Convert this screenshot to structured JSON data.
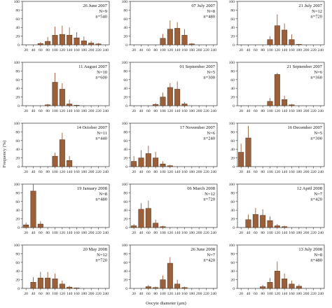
{
  "y_axis_title": "Frequency (%)",
  "x_axis_title": "Oocyte diameter (μm)",
  "chart_data": {
    "type": "bar",
    "categories": [
      "20",
      "40",
      "60",
      "80",
      "100",
      "120",
      "140",
      "160",
      "180",
      "200",
      "220",
      "240"
    ],
    "ylim": [
      0,
      100
    ],
    "y_ticks": [
      0,
      20,
      40,
      60,
      80,
      100
    ],
    "bar_color": "#9b5f3a",
    "error_bar_color": "#9b5f3a",
    "panels": [
      {
        "date": "26 June 2007",
        "n_females": "N=9",
        "n_oocytes": "n=540",
        "values": [
          0,
          0,
          3,
          8,
          22,
          24,
          22,
          16,
          9,
          4,
          2,
          0
        ],
        "errors": [
          0,
          0,
          3,
          10,
          20,
          20,
          18,
          13,
          10,
          5,
          2,
          0
        ]
      },
      {
        "date": "07 July 2007",
        "n_females": "N=8",
        "n_oocytes": "n=480",
        "values": [
          0,
          0,
          0,
          0,
          15,
          36,
          38,
          22,
          2,
          0,
          0,
          0
        ],
        "errors": [
          0,
          0,
          0,
          0,
          10,
          20,
          14,
          14,
          2,
          0,
          0,
          0
        ]
      },
      {
        "date": "21 July 2007",
        "n_females": "N=12",
        "n_oocytes": "n=720",
        "values": [
          0,
          0,
          0,
          0,
          12,
          44,
          34,
          12,
          1,
          0,
          0,
          0
        ],
        "errors": [
          0,
          0,
          0,
          0,
          8,
          26,
          15,
          12,
          1,
          0,
          0,
          0
        ]
      },
      {
        "date": "11 August 2007",
        "n_females": "N=10",
        "n_oocytes": "n=600",
        "values": [
          0,
          0,
          0,
          2,
          54,
          38,
          4,
          1,
          0,
          0,
          0,
          0
        ],
        "errors": [
          0,
          0,
          0,
          2,
          22,
          14,
          10,
          1,
          0,
          0,
          0,
          0
        ]
      },
      {
        "date": "01 September 2007",
        "n_females": "N=5",
        "n_oocytes": "n=300",
        "values": [
          0,
          0,
          0,
          3,
          20,
          42,
          38,
          4,
          0,
          0,
          0,
          0
        ],
        "errors": [
          0,
          0,
          0,
          3,
          10,
          10,
          18,
          4,
          0,
          0,
          0,
          0
        ]
      },
      {
        "date": "21 September 2007",
        "n_females": "N=6",
        "n_oocytes": "n=360",
        "values": [
          0,
          0,
          0,
          0,
          10,
          72,
          14,
          2,
          0,
          0,
          0,
          0
        ],
        "errors": [
          0,
          0,
          0,
          0,
          8,
          4,
          9,
          2,
          0,
          0,
          0,
          0
        ]
      },
      {
        "date": "14 October 2007",
        "n_females": "N=11",
        "n_oocytes": "n=440",
        "values": [
          0,
          0,
          0,
          0,
          24,
          62,
          14,
          0,
          0,
          0,
          0,
          0
        ],
        "errors": [
          0,
          0,
          0,
          0,
          8,
          16,
          10,
          0,
          0,
          0,
          0,
          0
        ]
      },
      {
        "date": "17 November 2007",
        "n_females": "N=6",
        "n_oocytes": "n=240",
        "values": [
          12,
          20,
          30,
          20,
          6,
          2,
          0,
          0,
          0,
          0,
          0,
          0
        ],
        "errors": [
          12,
          18,
          18,
          14,
          6,
          2,
          0,
          0,
          0,
          0,
          0,
          0
        ]
      },
      {
        "date": "16 December 2007",
        "n_females": "N=5",
        "n_oocytes": "n=300",
        "values": [
          33,
          66,
          0,
          0,
          0,
          0,
          0,
          0,
          0,
          0,
          0,
          0
        ],
        "errors": [
          20,
          28,
          0,
          0,
          0,
          0,
          0,
          0,
          0,
          0,
          0,
          0
        ]
      },
      {
        "date": "19 January 2008",
        "n_females": "N=8",
        "n_oocytes": "n=480",
        "values": [
          6,
          84,
          8,
          0,
          0,
          0,
          0,
          0,
          0,
          0,
          0,
          0
        ],
        "errors": [
          5,
          18,
          6,
          0,
          0,
          0,
          0,
          0,
          0,
          0,
          0,
          0
        ]
      },
      {
        "date": "06 March 2008",
        "n_females": "N=12",
        "n_oocytes": "n=720",
        "values": [
          4,
          42,
          44,
          10,
          2,
          0,
          0,
          0,
          0,
          0,
          0,
          0
        ],
        "errors": [
          4,
          14,
          18,
          8,
          2,
          0,
          0,
          0,
          0,
          0,
          0,
          0
        ]
      },
      {
        "date": "12 April 2008",
        "n_females": "N=7",
        "n_oocytes": "n=420",
        "values": [
          0,
          18,
          30,
          28,
          16,
          4,
          2,
          0,
          0,
          0,
          0,
          0
        ],
        "errors": [
          0,
          12,
          15,
          14,
          10,
          4,
          2,
          0,
          0,
          0,
          0,
          0
        ]
      },
      {
        "date": "20 May 2008",
        "n_females": "N=12",
        "n_oocytes": "n=720",
        "values": [
          0,
          14,
          24,
          24,
          22,
          10,
          3,
          1,
          0,
          0,
          0,
          0
        ],
        "errors": [
          0,
          12,
          14,
          14,
          12,
          8,
          3,
          1,
          0,
          0,
          0,
          0
        ]
      },
      {
        "date": "26 June 2008",
        "n_females": "N=7",
        "n_oocytes": "n=420",
        "values": [
          0,
          0,
          4,
          2,
          20,
          58,
          10,
          2,
          0,
          0,
          0,
          0
        ],
        "errors": [
          0,
          0,
          4,
          2,
          10,
          14,
          10,
          2,
          0,
          0,
          0,
          0
        ]
      },
      {
        "date": "13 July 2008",
        "n_females": "N=8",
        "n_oocytes": "n=480",
        "values": [
          0,
          0,
          0,
          4,
          14,
          40,
          22,
          10,
          5,
          0,
          0,
          0
        ],
        "errors": [
          0,
          0,
          0,
          4,
          10,
          22,
          12,
          8,
          4,
          0,
          0,
          0
        ]
      }
    ]
  }
}
